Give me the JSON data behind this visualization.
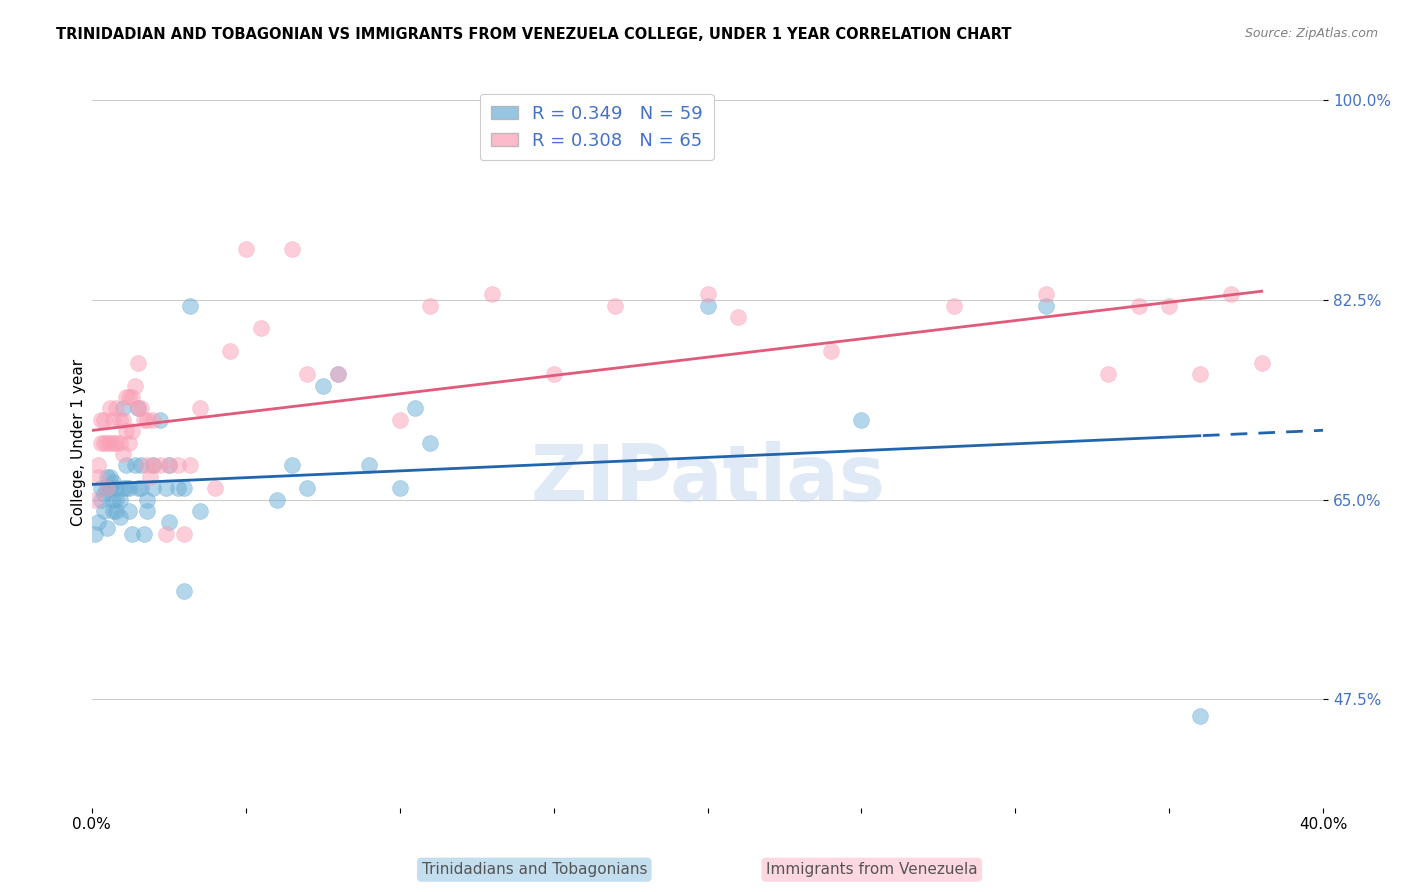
{
  "title": "TRINIDADIAN AND TOBAGONIAN VS IMMIGRANTS FROM VENEZUELA COLLEGE, UNDER 1 YEAR CORRELATION CHART",
  "source": "Source: ZipAtlas.com",
  "ylabel": "College, Under 1 year",
  "xlim": [
    0.0,
    0.4
  ],
  "ylim": [
    0.38,
    1.02
  ],
  "yticks": [
    0.475,
    0.65,
    0.825,
    1.0
  ],
  "ytick_labels": [
    "47.5%",
    "65.0%",
    "82.5%",
    "100.0%"
  ],
  "xticks": [
    0.0,
    0.05,
    0.1,
    0.15,
    0.2,
    0.25,
    0.3,
    0.35,
    0.4
  ],
  "xtick_labels": [
    "0.0%",
    "",
    "",
    "",
    "",
    "",
    "",
    "",
    "40.0%"
  ],
  "blue_color": "#6baed6",
  "pink_color": "#fa9fb5",
  "blue_line_color": "#2166ac",
  "pink_line_color": "#e05a7a",
  "blue_R": 0.349,
  "blue_N": 59,
  "pink_R": 0.308,
  "pink_N": 65,
  "legend_label_blue": "Trinidadians and Tobagonians",
  "legend_label_pink": "Immigrants from Venezuela",
  "watermark": "ZIPatlas",
  "blue_scatter_x": [
    0.001,
    0.002,
    0.003,
    0.003,
    0.004,
    0.004,
    0.005,
    0.005,
    0.005,
    0.006,
    0.006,
    0.006,
    0.007,
    0.007,
    0.007,
    0.008,
    0.008,
    0.008,
    0.009,
    0.009,
    0.01,
    0.01,
    0.011,
    0.011,
    0.012,
    0.012,
    0.013,
    0.014,
    0.015,
    0.015,
    0.016,
    0.016,
    0.017,
    0.018,
    0.018,
    0.02,
    0.02,
    0.022,
    0.024,
    0.025,
    0.025,
    0.028,
    0.03,
    0.03,
    0.032,
    0.035,
    0.06,
    0.065,
    0.07,
    0.075,
    0.08,
    0.09,
    0.1,
    0.105,
    0.11,
    0.2,
    0.25,
    0.31,
    0.36
  ],
  "blue_scatter_y": [
    0.62,
    0.63,
    0.65,
    0.66,
    0.64,
    0.655,
    0.66,
    0.67,
    0.625,
    0.66,
    0.66,
    0.67,
    0.64,
    0.65,
    0.665,
    0.64,
    0.65,
    0.66,
    0.635,
    0.65,
    0.66,
    0.73,
    0.66,
    0.68,
    0.64,
    0.66,
    0.62,
    0.68,
    0.66,
    0.73,
    0.66,
    0.68,
    0.62,
    0.64,
    0.65,
    0.66,
    0.68,
    0.72,
    0.66,
    0.63,
    0.68,
    0.66,
    0.57,
    0.66,
    0.82,
    0.64,
    0.65,
    0.68,
    0.66,
    0.75,
    0.76,
    0.68,
    0.66,
    0.73,
    0.7,
    0.82,
    0.72,
    0.82,
    0.46
  ],
  "pink_scatter_x": [
    0.001,
    0.002,
    0.002,
    0.003,
    0.003,
    0.004,
    0.004,
    0.005,
    0.005,
    0.006,
    0.006,
    0.007,
    0.007,
    0.008,
    0.008,
    0.009,
    0.009,
    0.01,
    0.01,
    0.011,
    0.011,
    0.012,
    0.012,
    0.013,
    0.013,
    0.014,
    0.015,
    0.015,
    0.016,
    0.017,
    0.018,
    0.018,
    0.019,
    0.02,
    0.02,
    0.022,
    0.024,
    0.025,
    0.028,
    0.03,
    0.032,
    0.035,
    0.04,
    0.045,
    0.05,
    0.055,
    0.065,
    0.07,
    0.08,
    0.1,
    0.11,
    0.13,
    0.15,
    0.17,
    0.2,
    0.21,
    0.24,
    0.28,
    0.31,
    0.33,
    0.34,
    0.35,
    0.36,
    0.37,
    0.38
  ],
  "pink_scatter_y": [
    0.65,
    0.67,
    0.68,
    0.7,
    0.72,
    0.7,
    0.72,
    0.66,
    0.7,
    0.7,
    0.73,
    0.7,
    0.72,
    0.73,
    0.7,
    0.7,
    0.72,
    0.69,
    0.72,
    0.71,
    0.74,
    0.7,
    0.74,
    0.71,
    0.74,
    0.75,
    0.73,
    0.77,
    0.73,
    0.72,
    0.68,
    0.72,
    0.67,
    0.68,
    0.72,
    0.68,
    0.62,
    0.68,
    0.68,
    0.62,
    0.68,
    0.73,
    0.66,
    0.78,
    0.87,
    0.8,
    0.87,
    0.76,
    0.76,
    0.72,
    0.82,
    0.83,
    0.76,
    0.82,
    0.83,
    0.81,
    0.78,
    0.82,
    0.83,
    0.76,
    0.82,
    0.82,
    0.76,
    0.83,
    0.77
  ]
}
